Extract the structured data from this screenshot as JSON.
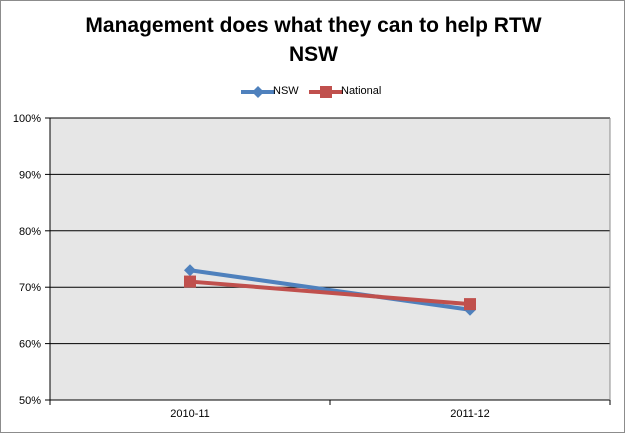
{
  "chart_data": {
    "type": "line",
    "title": "Management does what they can to help RTW NSW",
    "title_lines": [
      "Management does what they can to help RTW",
      "NSW"
    ],
    "categories": [
      "2010-11",
      "2011-12"
    ],
    "series": [
      {
        "name": "NSW",
        "values": [
          73,
          66
        ],
        "color": "#4f81bd",
        "marker": "diamond"
      },
      {
        "name": "National",
        "values": [
          71,
          67
        ],
        "color": "#c0504d",
        "marker": "square"
      }
    ],
    "yticks": [
      "50%",
      "60%",
      "70%",
      "80%",
      "90%",
      "100%"
    ],
    "ylim": [
      50,
      100
    ],
    "y_unit": "percent",
    "grid": true,
    "legend_position": "top",
    "plot_background": "#e6e6e6"
  }
}
